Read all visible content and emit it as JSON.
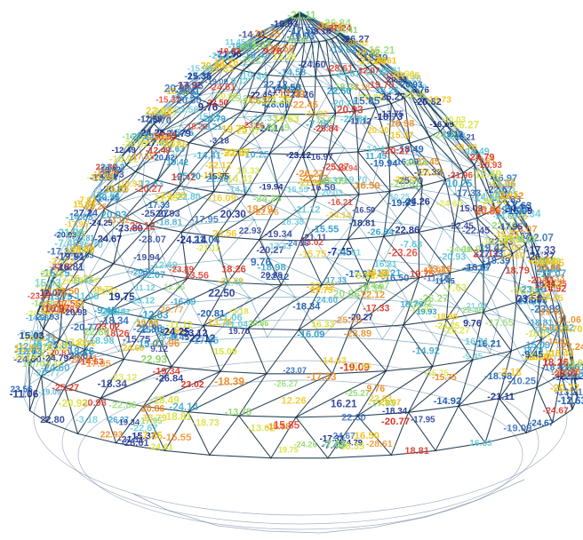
{
  "diagram": {
    "type": "structural-force-diagram",
    "subject": "geodesic dome truss",
    "colors": {
      "background": "#ffffff",
      "member_dark": "#0b2740",
      "member_mid": "#1b6b8f",
      "base_ring": "#5b6f95",
      "scale": [
        "#1a2f8c",
        "#1f5fb3",
        "#2f9fd0",
        "#5ec8d8",
        "#8fd86a",
        "#d9e23a",
        "#f2c20f",
        "#f08a1c",
        "#e0301e"
      ]
    },
    "labels": [
      {
        "text": "-12.63",
        "color": "#2f9fd0"
      },
      {
        "text": "-13.02",
        "color": "#2f9fd0"
      },
      {
        "text": "-20.81",
        "color": "#1f5fb3"
      },
      {
        "text": "-14.58",
        "color": "#2f9fd0"
      },
      {
        "text": "9.76",
        "color": "#f2c20f"
      },
      {
        "text": "-20.77",
        "color": "#1f5fb3"
      },
      {
        "text": "-18.49",
        "color": "#1f5fb3"
      },
      {
        "text": "-24.14",
        "color": "#1a2f8c"
      },
      {
        "text": "-13.75",
        "color": "#2f9fd0"
      },
      {
        "text": "-12.49",
        "color": "#2f9fd0"
      },
      {
        "text": "-15.37",
        "color": "#2f9fd0"
      },
      {
        "text": "-16.50",
        "color": "#1f5fb3"
      },
      {
        "text": "-15.75",
        "color": "#2f9fd0"
      },
      {
        "text": "-22.45",
        "color": "#1a2f8c"
      },
      {
        "text": "-15.09",
        "color": "#2f9fd0"
      },
      {
        "text": "-7.45",
        "color": "#5ec8d8"
      },
      {
        "text": "-20.03",
        "color": "#1a2f8c"
      },
      {
        "text": "-20.82",
        "color": "#1a2f8c"
      },
      {
        "text": "-17.95",
        "color": "#1f5fb3"
      },
      {
        "text": "-17.33",
        "color": "#1f5fb3"
      },
      {
        "text": "-12.07",
        "color": "#2f9fd0"
      },
      {
        "text": "-18.81",
        "color": "#1f5fb3"
      },
      {
        "text": "-23.12",
        "color": "#1a2f8c"
      },
      {
        "text": "-22.86",
        "color": "#1a2f8c"
      },
      {
        "text": "-20.93",
        "color": "#1a2f8c"
      },
      {
        "text": "-17.95",
        "color": "#1f5fb3"
      },
      {
        "text": "-24.60",
        "color": "#1a2f8c"
      },
      {
        "text": "-15.55",
        "color": "#2f9fd0"
      },
      {
        "text": "-16.09",
        "color": "#2f9fd0"
      },
      {
        "text": "-16.97",
        "color": "#1f5fb3"
      },
      {
        "text": "-25.70",
        "color": "#1a2f8c"
      },
      {
        "text": "-18.98",
        "color": "#1f5fb3"
      },
      {
        "text": "-24.79",
        "color": "#1a2f8c"
      },
      {
        "text": "-14.92",
        "color": "#2f9fd0"
      },
      {
        "text": "-17.33",
        "color": "#1f5fb3"
      },
      {
        "text": "-26.27",
        "color": "#1a2f8c"
      },
      {
        "text": "-26.84",
        "color": "#1a2f8c"
      },
      {
        "text": "-24.26",
        "color": "#1a2f8c"
      },
      {
        "text": "-19.34",
        "color": "#1f5fb3"
      },
      {
        "text": "-23.26",
        "color": "#1a2f8c"
      },
      {
        "text": "-11.12",
        "color": "#5ec8d8"
      },
      {
        "text": "-13.21",
        "color": "#2f9fd0"
      },
      {
        "text": "-24.61",
        "color": "#1a2f8c"
      },
      {
        "text": "-18.34",
        "color": "#1f5fb3"
      },
      {
        "text": "-18.39",
        "color": "#1f5fb3"
      },
      {
        "text": "-27.24",
        "color": "#1a2f8c"
      },
      {
        "text": "-22.67",
        "color": "#1a2f8c"
      },
      {
        "text": "-21.96",
        "color": "#1a2f8c"
      },
      {
        "text": "-14.63",
        "color": "#2f9fd0"
      },
      {
        "text": "-19.09",
        "color": "#1f5fb3"
      },
      {
        "text": "-24.25",
        "color": "#1a2f8c"
      },
      {
        "text": "-19.91",
        "color": "#1f5fb3"
      },
      {
        "text": "-23.89",
        "color": "#1a2f8c"
      },
      {
        "text": "-25.27",
        "color": "#1a2f8c"
      },
      {
        "text": "-24.60",
        "color": "#1a2f8c"
      },
      {
        "text": "-16.21",
        "color": "#1f5fb3"
      },
      {
        "text": "16.33",
        "color": "#f2c20f"
      },
      {
        "text": "16.21",
        "color": "#f2c20f"
      },
      {
        "text": "22.50",
        "color": "#f08a1c"
      },
      {
        "text": "23.02",
        "color": "#f08a1c"
      },
      {
        "text": "21.04",
        "color": "#e0301e"
      },
      {
        "text": "-7.63",
        "color": "#5ec8d8"
      },
      {
        "text": "25.36",
        "color": "#1a2f8c"
      },
      {
        "text": "11.45",
        "color": "#d9e23a"
      },
      {
        "text": "-3.18",
        "color": "#5ec8d8"
      },
      {
        "text": "18.79",
        "color": "#e0301e"
      },
      {
        "text": "20.93",
        "color": "#e0301e"
      },
      {
        "text": "9.12",
        "color": "#d9e23a"
      },
      {
        "text": "23.56",
        "color": "#e0301e"
      },
      {
        "text": "18.81",
        "color": "#e0301e"
      },
      {
        "text": "19.75",
        "color": "#e0301e"
      },
      {
        "text": "20.86",
        "color": "#1f5fb3"
      },
      {
        "text": "-18.73",
        "color": "#1f5fb3"
      },
      {
        "text": "22.80",
        "color": "#1a2f8c"
      },
      {
        "text": "-11.06",
        "color": "#5ec8d8"
      },
      {
        "text": "-14.41",
        "color": "#2f9fd0"
      },
      {
        "text": "-10.25",
        "color": "#2f9fd0"
      },
      {
        "text": "19.42",
        "color": "#e0301e"
      },
      {
        "text": "-28.61",
        "color": "#1a2f8c"
      },
      {
        "text": "-20.27",
        "color": "#1a2f8c"
      },
      {
        "text": "-26.27",
        "color": "#1a2f8c"
      },
      {
        "text": "22.93",
        "color": "#1a2f8c"
      },
      {
        "text": "-19.94",
        "color": "#1f5fb3"
      },
      {
        "text": "-17.55",
        "color": "#1f5fb3"
      },
      {
        "text": "20.30",
        "color": "#f2c20f"
      },
      {
        "text": "22.12",
        "color": "#f08a1c"
      },
      {
        "text": "18.26",
        "color": "#e0301e"
      },
      {
        "text": "-19.93",
        "color": "#1f5fb3"
      },
      {
        "text": "-22.12",
        "color": "#1a2f8c"
      },
      {
        "text": "15.85",
        "color": "#f2c20f"
      },
      {
        "text": "-23.07",
        "color": "#1a2f8c"
      },
      {
        "text": "19.70",
        "color": "#e0301e"
      },
      {
        "text": "-17.33",
        "color": "#1f5fb3"
      },
      {
        "text": "18.33",
        "color": "#8fd86a"
      },
      {
        "text": "-9.45",
        "color": "#8fd86a"
      },
      {
        "text": "15.03",
        "color": "#2f9fd0"
      },
      {
        "text": "-24.67",
        "color": "#1a2f8c"
      },
      {
        "text": "-21.11",
        "color": "#1a2f8c"
      },
      {
        "text": "12.26",
        "color": "#f2c20f"
      }
    ]
  }
}
